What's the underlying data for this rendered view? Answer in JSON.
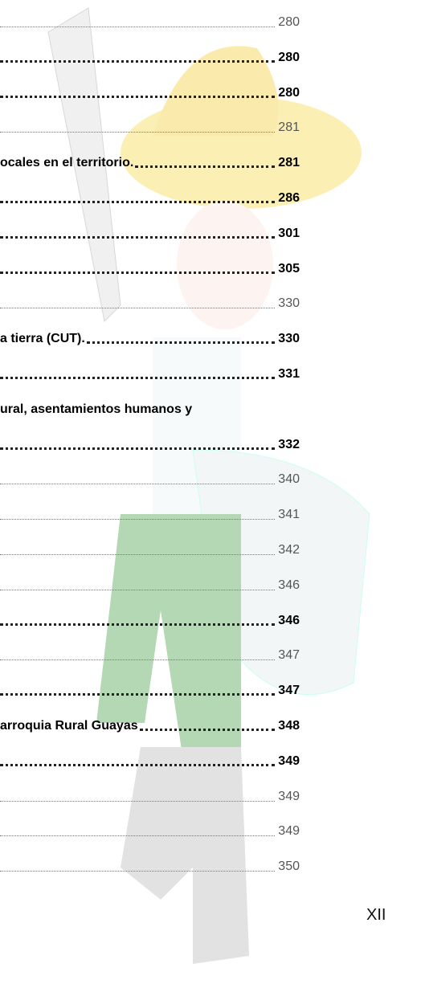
{
  "toc": {
    "entries": [
      {
        "page": "280",
        "style": "light"
      },
      {
        "page": "280",
        "style": "bold"
      },
      {
        "page": "280",
        "style": "bold"
      },
      {
        "page": "281",
        "style": "light"
      },
      {
        "text": "ocales en el territorio.",
        "page": "281",
        "style": "bold"
      },
      {
        "page": "286",
        "style": "bold"
      },
      {
        "page": "301",
        "style": "bold"
      },
      {
        "page": "305",
        "style": "bold"
      },
      {
        "page": "330",
        "style": "light"
      },
      {
        "text": "a tierra (CUT).",
        "page": "330",
        "style": "bold"
      },
      {
        "page": "331",
        "style": "bold"
      },
      {
        "text": "ural, asentamientos humanos y",
        "style": "bold"
      },
      {
        "page": "332",
        "style": "bold"
      },
      {
        "page": "340",
        "style": "light"
      },
      {
        "page": "341",
        "style": "light"
      },
      {
        "page": "342",
        "style": "light"
      },
      {
        "page": "346",
        "style": "light"
      },
      {
        "page": "346",
        "style": "bold"
      },
      {
        "page": "347",
        "style": "light"
      },
      {
        "page": "347",
        "style": "bold"
      },
      {
        "text": "arroquia Rural Guayas",
        "page": "348",
        "style": "bold"
      },
      {
        "page": "349",
        "style": "bold"
      },
      {
        "page": "349",
        "style": "light"
      },
      {
        "page": "349",
        "style": "light"
      },
      {
        "page": "350",
        "style": "light"
      }
    ]
  },
  "footer": {
    "page_number": "XII"
  }
}
